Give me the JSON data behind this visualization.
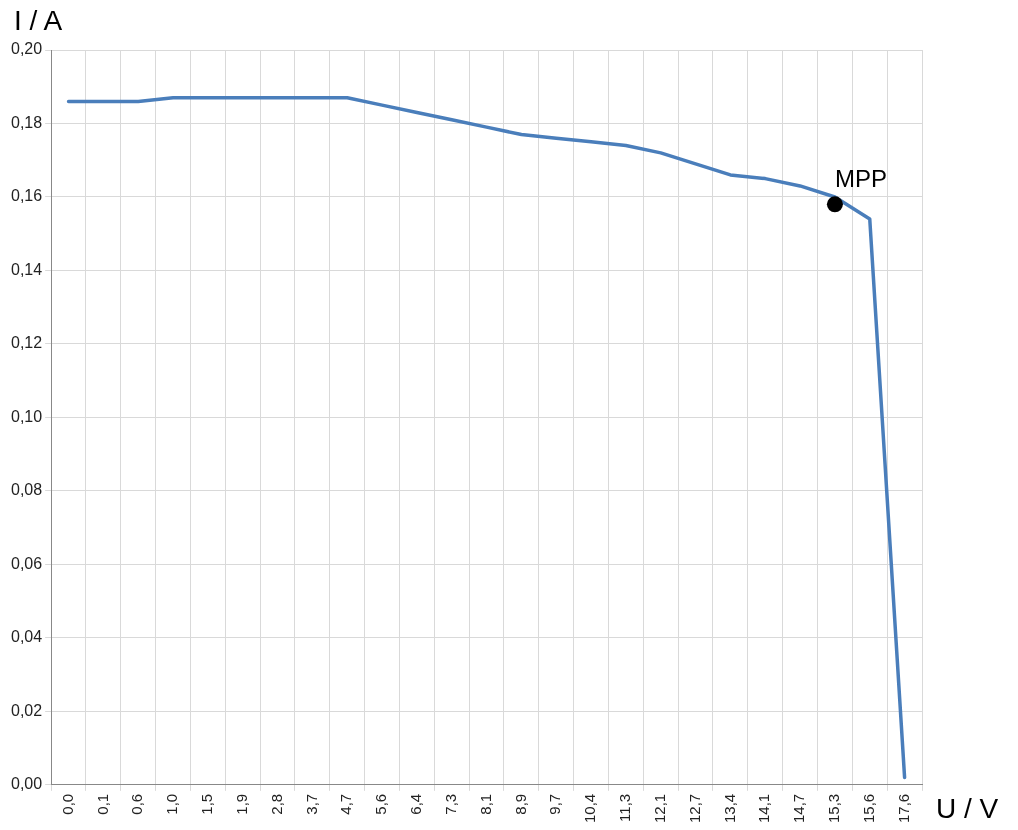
{
  "chart_data": {
    "type": "line",
    "xlabel": "U / V",
    "ylabel": "I / A",
    "categories": [
      "0,0",
      "0,1",
      "0,6",
      "1,0",
      "1,5",
      "1,9",
      "2,8",
      "3,7",
      "4,7",
      "5,6",
      "6,4",
      "7,3",
      "8,1",
      "8,9",
      "9,7",
      "10,4",
      "11,3",
      "12,1",
      "12,7",
      "13,4",
      "14,1",
      "14,7",
      "15,3",
      "15,6",
      "17,6"
    ],
    "series": [
      {
        "color": "#4a7ebb",
        "values": [
          0.186,
          0.186,
          0.186,
          0.187,
          0.187,
          0.187,
          0.187,
          0.187,
          0.187,
          0.185,
          0.183,
          0.181,
          0.179,
          0.177,
          0.176,
          0.175,
          0.174,
          0.172,
          0.169,
          0.166,
          0.165,
          0.163,
          0.16,
          0.154,
          0.002
        ]
      }
    ],
    "ylim": [
      0,
      0.2
    ],
    "yticks": [
      {
        "value": 0,
        "label": "0,00"
      },
      {
        "value": 0.02,
        "label": "0,02"
      },
      {
        "value": 0.04,
        "label": "0,04"
      },
      {
        "value": 0.06,
        "label": "0,06"
      },
      {
        "value": 0.08,
        "label": "0,08"
      },
      {
        "value": 0.1,
        "label": "0,10"
      },
      {
        "value": 0.12,
        "label": "0,12"
      },
      {
        "value": 0.14,
        "label": "0,14"
      },
      {
        "value": 0.16,
        "label": "0,16"
      },
      {
        "value": 0.18,
        "label": "0,18"
      },
      {
        "value": 0.2,
        "label": "0,20"
      }
    ],
    "annotations": [
      {
        "text": "MPP",
        "x": "15,3",
        "y": 0.158
      }
    ],
    "grid": true,
    "legend": false,
    "marker": "none",
    "line_style": "solid"
  }
}
